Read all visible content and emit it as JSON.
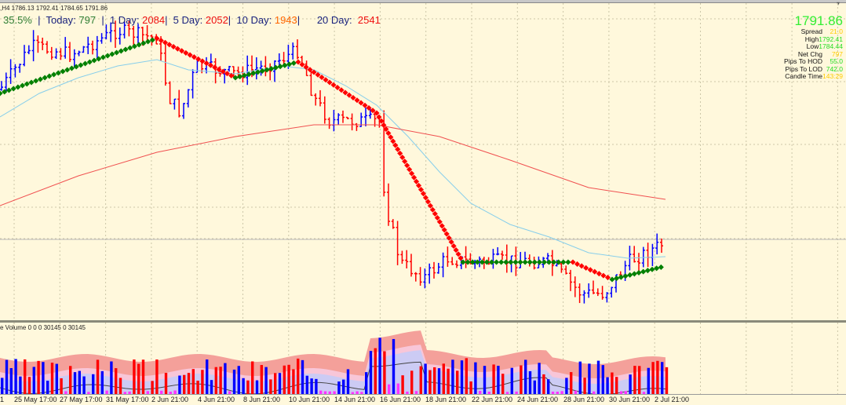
{
  "header": {
    "ohlc": ",H4  1786.13 1792.41 1784.65 1791.86"
  },
  "stats": {
    "pct": "35.5%",
    "today_label": "Today:",
    "today": "797",
    "d1_label": "1 Day:",
    "d1": "2084",
    "d5_label": "5 Day:",
    "d5": "2052",
    "d10_label": "10 Day:",
    "d10": "1943",
    "d20_label": "20 Day:",
    "d20": "2541"
  },
  "info": {
    "price": "1791.86",
    "rows": [
      {
        "label": "Spread",
        "value": "21.0",
        "color": "#ffcc00"
      },
      {
        "label": "High",
        "value": "1792.41",
        "color": "#22dd22"
      },
      {
        "label": "Low",
        "value": "1784.44",
        "color": "#22dd22"
      },
      {
        "label": "Net Chg",
        "value": "797",
        "color": "#ffcc00"
      },
      {
        "label": "Pips To HOD",
        "value": "55.0",
        "color": "#22dd22"
      },
      {
        "label": "Pips To LOD",
        "value": "742.0",
        "color": "#22dd22"
      },
      {
        "label": "Candle Time",
        "value": "143:29",
        "color": "#ffcc00"
      }
    ]
  },
  "volume": {
    "label": "e Volume 0 0 0 30145 0 30145"
  },
  "time_axis": [
    "1",
    "25 May 17:00",
    "27 May 17:00",
    "31 May 17:00",
    "2 Jun 21:00",
    "4 Jun 21:00",
    "8 Jun 21:00",
    "10 Jun 21:00",
    "14 Jun 21:00",
    "16 Jun 21:00",
    "18 Jun 21:00",
    "22 Jun 21:00",
    "24 Jun 21:00",
    "28 Jun 21:00",
    "30 Jun 21:00",
    "2 Jul 21:00"
  ],
  "colors": {
    "background": "#fff8dc",
    "bull": "#0000ff",
    "bear": "#ff0000",
    "trend_up": "#008000",
    "trend_down": "#ff0000",
    "ma_fast": "#87ceeb",
    "ma_slow": "#f05050"
  }
}
